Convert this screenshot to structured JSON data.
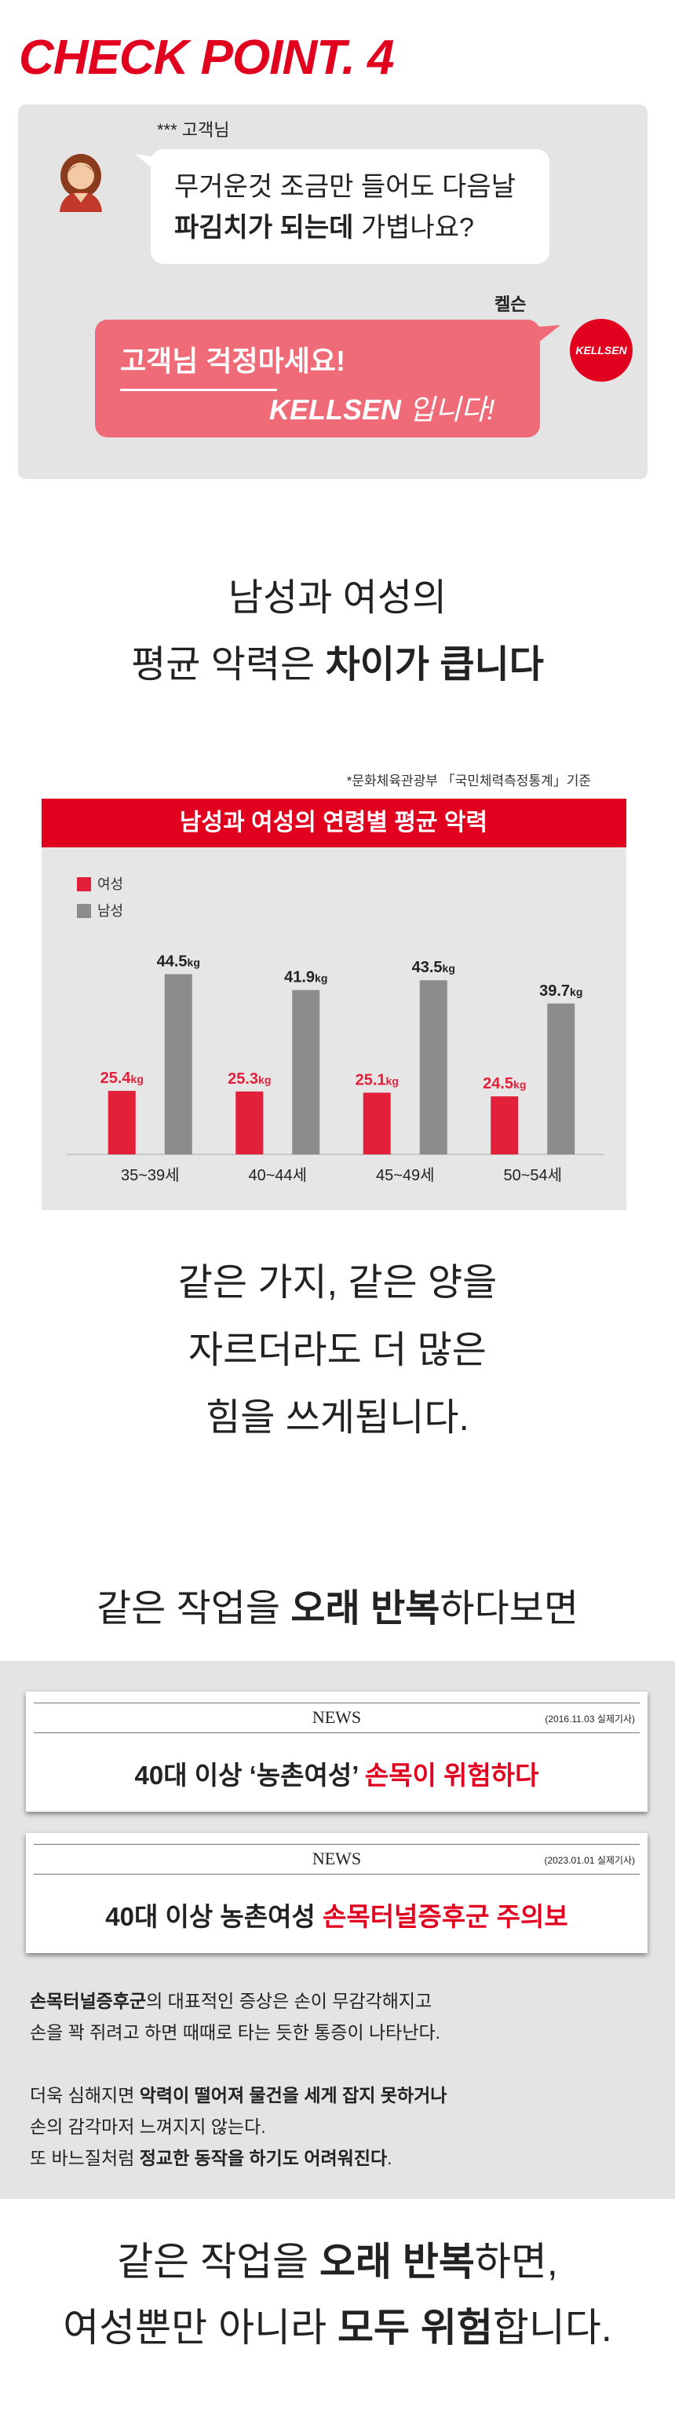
{
  "header": {
    "title": "CHECK POINT. 4"
  },
  "chat": {
    "customer_name": "*** 고객님",
    "customer_line1": "무거운것 조금만 들어도 다음날",
    "customer_line2": [
      {
        "text": "파김치가 되는데",
        "bold": true
      },
      {
        "text": " 가볍나요?"
      }
    ],
    "brand_name": "켈슨",
    "logo": "KELLSEN",
    "reply_line1": "고객님 걱정마세요!",
    "reply_line2": [
      {
        "text": "KELLSEN",
        "bold": true
      },
      {
        "text": " 입니다!"
      }
    ]
  },
  "heading1": {
    "line1": "남성과 여성의",
    "line2": [
      {
        "text": "평균 악력은 "
      },
      {
        "text": "차이가 큽니다",
        "bold": true
      }
    ]
  },
  "chart_data": {
    "type": "bar",
    "title": "남성과 여성의 연령별 평균 악력",
    "source": "*문화체육관광부 「국민체력측정통계」기준",
    "categories": [
      "35~39세",
      "40~44세",
      "45~49세",
      "50~54세"
    ],
    "series": [
      {
        "name": "여성",
        "color": "#e2203a",
        "values": [
          25.4,
          25.3,
          25.1,
          24.5
        ],
        "value_labels": [
          "25.4kg",
          "25.3kg",
          "25.1kg",
          "24.5kg"
        ]
      },
      {
        "name": "남성",
        "color": "#8c8c8c",
        "values": [
          44.5,
          41.9,
          43.5,
          39.7
        ],
        "value_labels": [
          "44.5kg",
          "41.9kg",
          "43.5kg",
          "39.7kg"
        ]
      }
    ],
    "ylim": [
      15,
      47
    ]
  },
  "text1": {
    "lines": [
      "같은 가지, 같은 양을",
      "자르더라도 더 많은",
      "힘을 쓰게됩니다."
    ]
  },
  "heading2": [
    {
      "text": "같은 작업을 "
    },
    {
      "text": "오래 반복",
      "bold": true
    },
    {
      "text": "하다보면"
    }
  ],
  "news": [
    {
      "label": "NEWS",
      "date": "(2016.11.03 실제기사)",
      "headline": [
        {
          "text": "40대 이상 ‘농촌여성’ ",
          "bold": true
        },
        {
          "text": "손목이 위험하다",
          "bold": true,
          "color": "#e2001f"
        }
      ]
    },
    {
      "label": "NEWS",
      "date": "(2023.01.01 실제기사)",
      "headline": [
        {
          "text": "40대 이상 농촌여성 ",
          "bold": true
        },
        {
          "text": "손목터널증후군 주의보",
          "bold": true,
          "color": "#e2001f"
        }
      ]
    }
  ],
  "paragraphs": [
    [
      [
        {
          "text": "손목터널증후군",
          "bold": true
        },
        {
          "text": "의 대표적인 증상은 손이 무감각해지고"
        }
      ],
      [
        {
          "text": "손을 꽉 쥐려고 하면 때때로 타는 듯한 통증이 나타난다."
        }
      ]
    ],
    [
      [
        {
          "text": "더욱 심해지면 "
        },
        {
          "text": "악력이 떨어져 물건을 세게 잡지 못하거나",
          "bold": true
        }
      ],
      [
        {
          "text": "손의 감각마저 느껴지지 않는다."
        }
      ],
      [
        {
          "text": "또 바느질처럼 "
        },
        {
          "text": "정교한 동작을 하기도 어려워진다",
          "bold": true
        },
        {
          "text": "."
        }
      ]
    ]
  ],
  "closing": [
    [
      {
        "text": "같은 작업을 "
      },
      {
        "text": "오래 반복",
        "bold": true
      },
      {
        "text": "하면,"
      }
    ],
    [
      {
        "text": "여성뿐만 아니라 "
      },
      {
        "text": "모두 위험",
        "bold": true
      },
      {
        "text": "합니다."
      }
    ]
  ]
}
